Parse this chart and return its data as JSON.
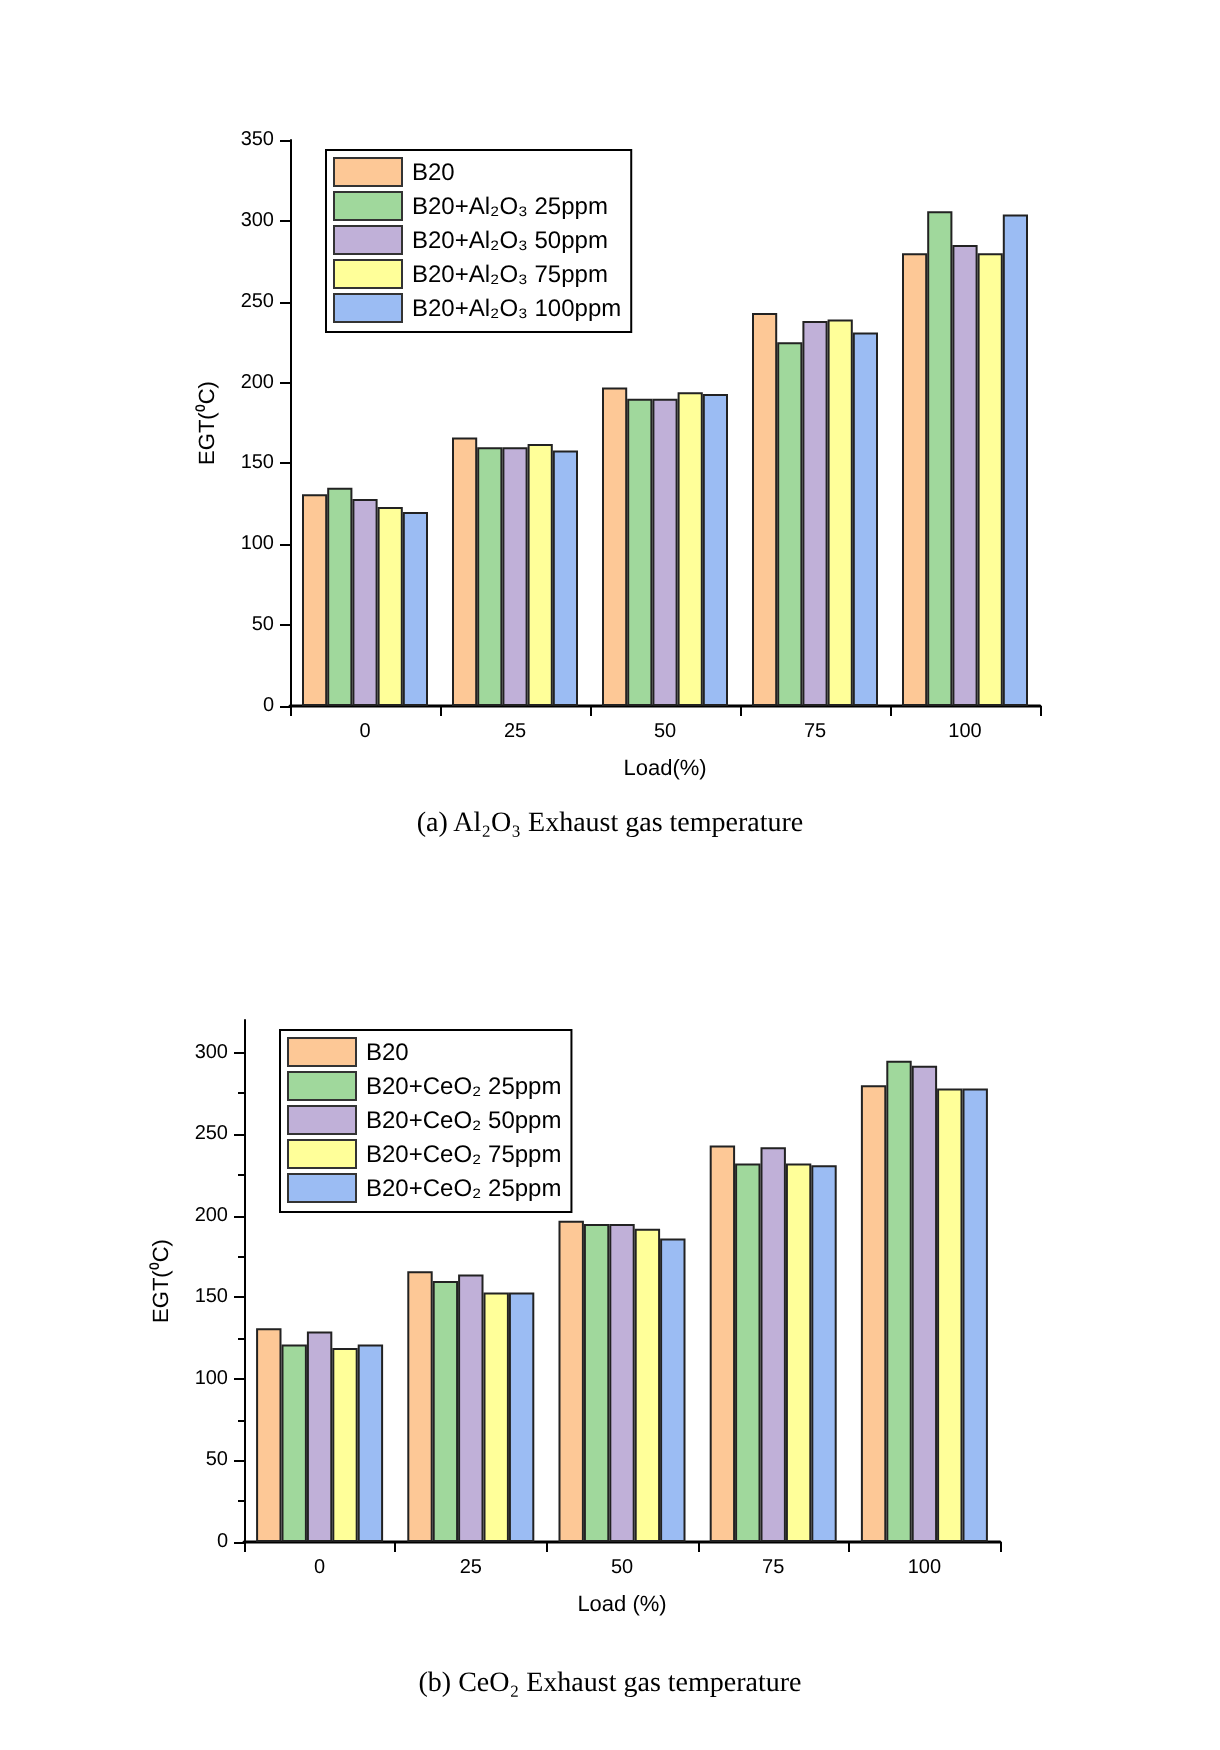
{
  "chart_data": [
    {
      "type": "bar",
      "title": "(a) Al₂O₃ Exhaust gas temperature",
      "xlabel": "Load(%)",
      "ylabel": "EGT(⁰C)",
      "categories": [
        "0",
        "25",
        "50",
        "75",
        "100"
      ],
      "series": [
        {
          "name": "B20",
          "color": "#fdc896",
          "values": [
            131,
            166,
            197,
            243,
            280
          ]
        },
        {
          "name": "B20+Al₂O₃ 25ppm",
          "color": "#a0d89c",
          "values": [
            135,
            160,
            190,
            225,
            306
          ]
        },
        {
          "name": "B20+Al₂O₃ 50ppm",
          "color": "#c0b0d8",
          "values": [
            128,
            160,
            190,
            238,
            285
          ]
        },
        {
          "name": "B20+Al₂O₃ 75ppm",
          "color": "#ffff99",
          "values": [
            123,
            162,
            194,
            239,
            280
          ]
        },
        {
          "name": "B20+Al₂O₃ 100ppm",
          "color": "#9bbcf3",
          "values": [
            120,
            158,
            193,
            231,
            304
          ]
        }
      ],
      "ylim": [
        0,
        350
      ],
      "yticks": [
        0,
        50,
        100,
        150,
        200,
        250,
        300,
        350
      ],
      "grid": false,
      "legend": "top left"
    },
    {
      "type": "bar",
      "title": "(b) CeO₂ Exhaust gas temperature",
      "xlabel": "Load (%)",
      "ylabel": "EGT(⁰C)",
      "categories": [
        "0",
        "25",
        "50",
        "75",
        "100"
      ],
      "series": [
        {
          "name": "B20",
          "color": "#fdc896",
          "values": [
            131,
            166,
            197,
            243,
            280
          ]
        },
        {
          "name": "B20+CeO₂ 25ppm",
          "color": "#a0d89c",
          "values": [
            121,
            160,
            195,
            232,
            295
          ]
        },
        {
          "name": "B20+CeO₂ 50ppm",
          "color": "#c0b0d8",
          "values": [
            129,
            164,
            195,
            242,
            292
          ]
        },
        {
          "name": "B20+CeO₂ 75ppm",
          "color": "#ffff99",
          "values": [
            119,
            153,
            192,
            232,
            278
          ]
        },
        {
          "name": "B20+CeO₂ 25ppm",
          "color": "#9bbcf3",
          "values": [
            121,
            153,
            186,
            231,
            278
          ]
        }
      ],
      "ylim": [
        0,
        320
      ],
      "yticks": [
        0,
        50,
        100,
        150,
        200,
        250,
        300
      ],
      "grid": false,
      "legend": "top left"
    }
  ]
}
